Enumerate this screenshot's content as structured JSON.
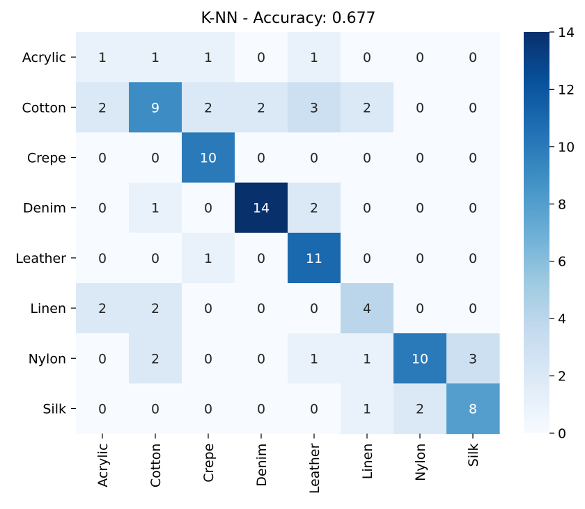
{
  "chart_data": {
    "type": "heatmap",
    "title": "K-NN - Accuracy: 0.677",
    "xlabel": "",
    "ylabel": "",
    "x_categories": [
      "Acrylic",
      "Cotton",
      "Crepe",
      "Denim",
      "Leather",
      "Linen",
      "Nylon",
      "Silk"
    ],
    "y_categories": [
      "Acrylic",
      "Cotton",
      "Crepe",
      "Denim",
      "Leather",
      "Linen",
      "Nylon",
      "Silk"
    ],
    "values": [
      [
        1,
        1,
        1,
        0,
        1,
        0,
        0,
        0
      ],
      [
        2,
        9,
        2,
        2,
        3,
        2,
        0,
        0
      ],
      [
        0,
        0,
        10,
        0,
        0,
        0,
        0,
        0
      ],
      [
        0,
        1,
        0,
        14,
        2,
        0,
        0,
        0
      ],
      [
        0,
        0,
        1,
        0,
        11,
        0,
        0,
        0
      ],
      [
        2,
        2,
        0,
        0,
        0,
        4,
        0,
        0
      ],
      [
        0,
        2,
        0,
        0,
        1,
        1,
        10,
        3
      ],
      [
        0,
        0,
        0,
        0,
        0,
        1,
        2,
        8
      ]
    ],
    "vmin": 0,
    "vmax": 14,
    "colorbar_ticks": [
      0,
      2,
      4,
      6,
      8,
      10,
      12,
      14
    ],
    "colormap": "Blues",
    "annot_light_color": "#ffffff",
    "annot_dark_color": "#262626"
  }
}
